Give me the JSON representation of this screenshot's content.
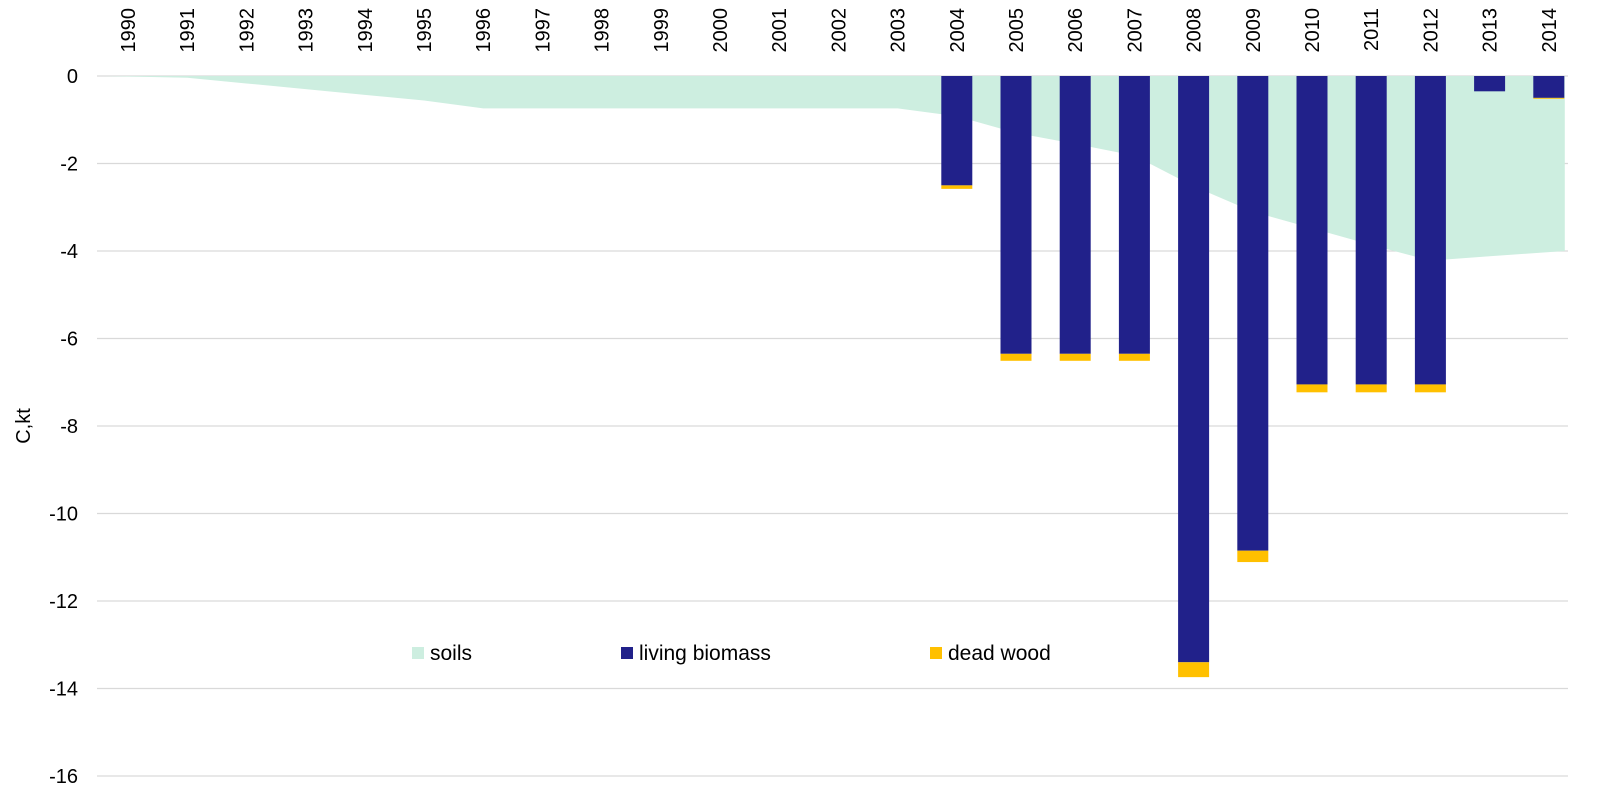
{
  "chart_data": {
    "type": "bar",
    "ylabel": "C,kt",
    "xlabel": "",
    "title": "",
    "ylim": [
      -16,
      0
    ],
    "yticks": [
      0,
      -2,
      -4,
      -6,
      -8,
      -10,
      -12,
      -14,
      -16
    ],
    "grid": true,
    "legend_position": "bottom-center",
    "categories": [
      "1990",
      "1991",
      "1992",
      "1993",
      "1994",
      "1995",
      "1996",
      "1997",
      "1998",
      "1999",
      "2000",
      "2001",
      "2002",
      "2003",
      "2004",
      "2005",
      "2006",
      "2007",
      "2008",
      "2009",
      "2010",
      "2011",
      "2012",
      "2013",
      "2014"
    ],
    "series": [
      {
        "name": "soils",
        "kind": "area",
        "color": "#cdeee0",
        "values": [
          0,
          -0.04,
          -0.17,
          -0.3,
          -0.43,
          -0.56,
          -0.74,
          -0.74,
          -0.74,
          -0.74,
          -0.74,
          -0.74,
          -0.74,
          -0.74,
          -0.92,
          -1.3,
          -1.55,
          -1.82,
          -2.52,
          -3.1,
          -3.48,
          -3.86,
          -4.22,
          -4.12,
          -4.0
        ]
      },
      {
        "name": "living biomass",
        "kind": "bar",
        "color": "#21218a",
        "values": [
          0,
          0,
          0,
          0,
          0,
          0,
          0,
          0,
          0,
          0,
          0,
          0,
          0,
          0,
          -2.5,
          -6.35,
          -6.35,
          -6.35,
          -13.4,
          -10.85,
          -7.05,
          -7.05,
          -7.05,
          -0.35,
          -0.5
        ]
      },
      {
        "name": "dead wood",
        "kind": "bar",
        "color": "#ffc000",
        "values": [
          0,
          0,
          0,
          0,
          0,
          0,
          0,
          0,
          0,
          0,
          0,
          0,
          0,
          0,
          -0.08,
          -0.16,
          -0.16,
          -0.16,
          -0.34,
          -0.26,
          -0.18,
          -0.18,
          -0.18,
          0,
          -0.02
        ]
      }
    ]
  }
}
